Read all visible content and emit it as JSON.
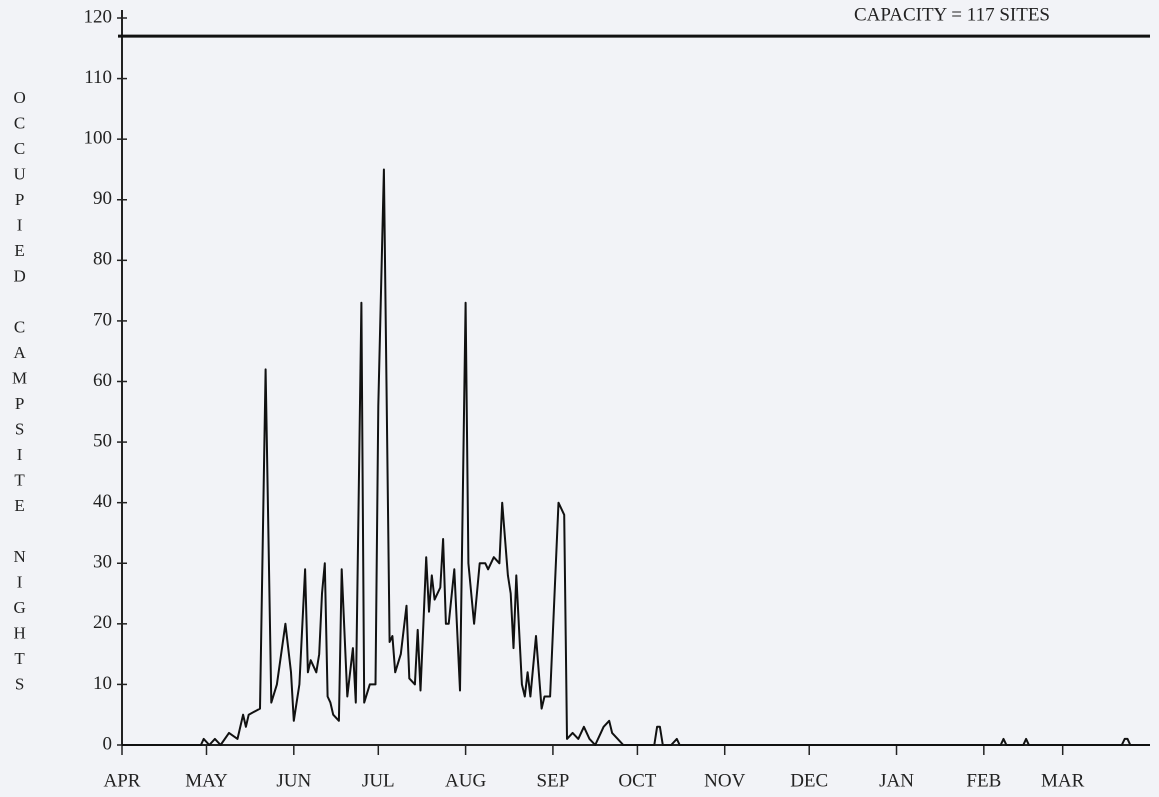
{
  "chart_data": {
    "type": "line",
    "y_label": "OCCUPIED CAMPSITE NIGHTS",
    "annotation": "CAPACITY = 117 SITES",
    "capacity": 117,
    "xlim": [
      0,
      365
    ],
    "xticks": [
      {
        "value": 0,
        "label": "APR"
      },
      {
        "value": 30,
        "label": "MAY"
      },
      {
        "value": 61,
        "label": "JUN"
      },
      {
        "value": 91,
        "label": "JUL"
      },
      {
        "value": 122,
        "label": "AUG"
      },
      {
        "value": 153,
        "label": "SEP"
      },
      {
        "value": 183,
        "label": "OCT"
      },
      {
        "value": 214,
        "label": "NOV"
      },
      {
        "value": 244,
        "label": "DEC"
      },
      {
        "value": 275,
        "label": "JAN"
      },
      {
        "value": 306,
        "label": "FEB"
      },
      {
        "value": 334,
        "label": "MAR"
      }
    ],
    "ylim": [
      0,
      120
    ],
    "yticks": [
      0,
      10,
      20,
      30,
      40,
      50,
      60,
      70,
      80,
      90,
      100,
      110,
      120
    ],
    "color": "#111111",
    "x": [
      0,
      28,
      29,
      31,
      33,
      35,
      38,
      41,
      43,
      44,
      45,
      49,
      51,
      53,
      55,
      58,
      60,
      61,
      63,
      65,
      66,
      67,
      69,
      70,
      71,
      72,
      73,
      74,
      75,
      77,
      78,
      80,
      82,
      83,
      85,
      86,
      88,
      90,
      91,
      93,
      95,
      96,
      97,
      99,
      101,
      102,
      104,
      105,
      106,
      107,
      108,
      109,
      110,
      111,
      113,
      114,
      115,
      116,
      118,
      120,
      122,
      123,
      125,
      127,
      129,
      130,
      132,
      134,
      135,
      137,
      138,
      139,
      140,
      142,
      143,
      144,
      145,
      147,
      149,
      150,
      152,
      155,
      157,
      158,
      160,
      162,
      164,
      166,
      168,
      170,
      171,
      173,
      174,
      176,
      178,
      180,
      189,
      190,
      191,
      192,
      195,
      197,
      198,
      312,
      313,
      314,
      320,
      321,
      322,
      355,
      356,
      357,
      358,
      365
    ],
    "values": [
      0,
      0,
      1,
      0,
      1,
      0,
      2,
      1,
      5,
      3,
      5,
      6,
      62,
      7,
      10,
      20,
      12,
      4,
      10,
      29,
      12,
      14,
      12,
      15,
      25,
      30,
      8,
      7,
      5,
      4,
      29,
      8,
      16,
      7,
      73,
      7,
      10,
      10,
      56,
      95,
      17,
      18,
      12,
      15,
      23,
      11,
      10,
      19,
      9,
      20,
      31,
      22,
      28,
      24,
      26,
      34,
      20,
      20,
      29,
      9,
      73,
      30,
      20,
      30,
      30,
      29,
      31,
      30,
      40,
      28,
      25,
      16,
      28,
      10,
      8,
      12,
      8,
      18,
      6,
      8,
      8,
      40,
      38,
      1,
      2,
      1,
      3,
      1,
      0,
      2,
      3,
      4,
      2,
      1,
      0,
      0,
      0,
      3,
      3,
      0,
      0,
      1,
      0,
      0,
      1,
      0,
      0,
      1,
      0,
      0,
      1,
      1,
      0,
      0
    ]
  }
}
